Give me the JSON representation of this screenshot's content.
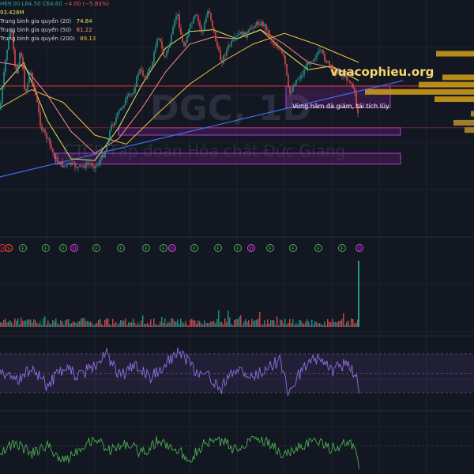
{
  "chart_data": {
    "type": "candlestick",
    "watermark": {
      "symbol": "DGC, 1D",
      "company": "CTCP Tập đoàn Hóa chất Đức Giang"
    },
    "brand": "vuacophieu.org",
    "ohlc_text": {
      "h": "H69.00",
      "l": "L64.50",
      "c": "C64.60",
      "chg": "−4.00 (−5.83%)"
    },
    "volume_text": "93.428M",
    "ma_legend": [
      {
        "name": "Trung bình gia quyền (20)",
        "value": "74.84",
        "color": "#e1e65a"
      },
      {
        "name": "Trung bình gia quyền (50)",
        "value": "81.22",
        "color": "#ff8a8a"
      },
      {
        "name": "Trung bình gia quyền (200)",
        "value": "89.13",
        "color": "#f0c040"
      }
    ],
    "annotation": "Vùng hãm đà giảm, tái tích lũy",
    "price_path": [
      [
        0,
        0.56
      ],
      [
        8,
        0.25
      ],
      [
        14,
        0.1
      ],
      [
        20,
        0.38
      ],
      [
        26,
        0.22
      ],
      [
        32,
        0.48
      ],
      [
        38,
        0.34
      ],
      [
        46,
        0.5
      ],
      [
        52,
        0.66
      ],
      [
        60,
        0.72
      ],
      [
        70,
        0.83
      ],
      [
        80,
        0.87
      ],
      [
        90,
        0.86
      ],
      [
        100,
        0.88
      ],
      [
        112,
        0.86
      ],
      [
        122,
        0.87
      ],
      [
        132,
        0.8
      ],
      [
        140,
        0.66
      ],
      [
        150,
        0.58
      ],
      [
        160,
        0.5
      ],
      [
        168,
        0.47
      ],
      [
        176,
        0.34
      ],
      [
        184,
        0.38
      ],
      [
        192,
        0.32
      ],
      [
        200,
        0.14
      ],
      [
        208,
        0.28
      ],
      [
        216,
        0.18
      ],
      [
        224,
        0.02
      ],
      [
        232,
        0.22
      ],
      [
        240,
        0.11
      ],
      [
        248,
        0.04
      ],
      [
        256,
        0.14
      ],
      [
        264,
        0.0
      ],
      [
        272,
        0.16
      ],
      [
        280,
        0.3
      ],
      [
        288,
        0.22
      ],
      [
        296,
        0.18
      ],
      [
        304,
        0.14
      ],
      [
        312,
        0.15
      ],
      [
        320,
        0.1
      ],
      [
        328,
        0.08
      ],
      [
        336,
        0.1
      ],
      [
        344,
        0.18
      ],
      [
        352,
        0.22
      ],
      [
        360,
        0.28
      ],
      [
        366,
        0.48
      ],
      [
        374,
        0.4
      ],
      [
        382,
        0.37
      ],
      [
        390,
        0.3
      ],
      [
        398,
        0.27
      ],
      [
        406,
        0.24
      ],
      [
        414,
        0.3
      ],
      [
        422,
        0.35
      ],
      [
        430,
        0.36
      ],
      [
        438,
        0.38
      ],
      [
        446,
        0.42
      ],
      [
        450,
        0.5
      ],
      [
        454,
        0.6
      ]
    ],
    "ma20_path": [
      [
        0,
        0.45
      ],
      [
        30,
        0.3
      ],
      [
        60,
        0.62
      ],
      [
        90,
        0.83
      ],
      [
        120,
        0.84
      ],
      [
        150,
        0.66
      ],
      [
        180,
        0.42
      ],
      [
        210,
        0.22
      ],
      [
        240,
        0.13
      ],
      [
        270,
        0.12
      ],
      [
        300,
        0.17
      ],
      [
        330,
        0.12
      ],
      [
        360,
        0.24
      ],
      [
        390,
        0.34
      ],
      [
        420,
        0.32
      ],
      [
        454,
        0.4
      ]
    ],
    "ma50_path": [
      [
        0,
        0.3
      ],
      [
        30,
        0.32
      ],
      [
        60,
        0.48
      ],
      [
        90,
        0.68
      ],
      [
        120,
        0.8
      ],
      [
        150,
        0.72
      ],
      [
        180,
        0.55
      ],
      [
        210,
        0.35
      ],
      [
        240,
        0.2
      ],
      [
        270,
        0.16
      ],
      [
        300,
        0.17
      ],
      [
        330,
        0.12
      ],
      [
        360,
        0.2
      ],
      [
        390,
        0.3
      ],
      [
        420,
        0.33
      ],
      [
        454,
        0.37
      ]
    ],
    "ma200_path": [
      [
        0,
        0.55
      ],
      [
        40,
        0.45
      ],
      [
        80,
        0.52
      ],
      [
        120,
        0.7
      ],
      [
        160,
        0.75
      ],
      [
        200,
        0.58
      ],
      [
        240,
        0.42
      ],
      [
        280,
        0.3
      ],
      [
        320,
        0.2
      ],
      [
        360,
        0.14
      ],
      [
        400,
        0.2
      ],
      [
        454,
        0.3
      ]
    ],
    "trendline": [
      [
        0,
        0.93
      ],
      [
        510,
        0.4
      ]
    ],
    "resistance_level": 0.43,
    "support_level": 0.66,
    "zones": [
      {
        "x0": 362,
        "x1": 494,
        "y0": 0.43,
        "y1": 0.55
      },
      {
        "x0": 150,
        "x1": 507,
        "y0": 0.66,
        "y1": 0.7
      },
      {
        "x0": 70,
        "x1": 507,
        "y0": 0.8,
        "y1": 0.86
      }
    ],
    "volume_profile": [
      {
        "y": 0.25,
        "len": 48,
        "color": "#d4a017"
      },
      {
        "y": 0.38,
        "len": 40,
        "color": "#d4a017"
      },
      {
        "y": 0.42,
        "len": 70,
        "color": "#d4a017"
      },
      {
        "y": 0.46,
        "len": 138,
        "color": "#d4a017"
      },
      {
        "y": 0.5,
        "len": 50,
        "color": "#d4a017"
      },
      {
        "y": 0.58,
        "len": 4,
        "color": "#b89030"
      },
      {
        "y": 0.63,
        "len": 26,
        "color": "#b89030"
      },
      {
        "y": 0.67,
        "len": 12,
        "color": "#b89030"
      }
    ],
    "event_markers": [
      {
        "x": 3,
        "label": "D",
        "color": "#e91e63"
      },
      {
        "x": 11,
        "label": "S",
        "color": "#ff5722"
      },
      {
        "x": 29,
        "label": "F",
        "color": "#4caf50"
      },
      {
        "x": 58,
        "label": "F",
        "color": "#4caf50"
      },
      {
        "x": 80,
        "label": "F",
        "color": "#4caf50"
      },
      {
        "x": 94,
        "label": "D",
        "color": "#e040fb"
      },
      {
        "x": 122,
        "label": "F",
        "color": "#4caf50"
      },
      {
        "x": 153,
        "label": "F",
        "color": "#4caf50"
      },
      {
        "x": 185,
        "label": "F",
        "color": "#4caf50"
      },
      {
        "x": 207,
        "label": "F",
        "color": "#4caf50"
      },
      {
        "x": 218,
        "label": "D",
        "color": "#e040fb"
      },
      {
        "x": 246,
        "label": "F",
        "color": "#4caf50"
      },
      {
        "x": 276,
        "label": "F",
        "color": "#4caf50"
      },
      {
        "x": 301,
        "label": "F",
        "color": "#4caf50"
      },
      {
        "x": 318,
        "label": "D",
        "color": "#e040fb"
      },
      {
        "x": 342,
        "label": "F",
        "color": "#4caf50"
      },
      {
        "x": 371,
        "label": "F",
        "color": "#4caf50"
      },
      {
        "x": 403,
        "label": "F",
        "color": "#4caf50"
      },
      {
        "x": 433,
        "label": "F",
        "color": "#4caf50"
      },
      {
        "x": 455,
        "label": "D",
        "color": "#e040fb"
      }
    ],
    "rsi_path": [
      [
        0,
        0.45
      ],
      [
        20,
        0.65
      ],
      [
        40,
        0.4
      ],
      [
        60,
        0.75
      ],
      [
        80,
        0.4
      ],
      [
        100,
        0.55
      ],
      [
        120,
        0.35
      ],
      [
        135,
        0.1
      ],
      [
        150,
        0.55
      ],
      [
        170,
        0.35
      ],
      [
        190,
        0.6
      ],
      [
        210,
        0.3
      ],
      [
        228,
        0.05
      ],
      [
        245,
        0.45
      ],
      [
        265,
        0.55
      ],
      [
        280,
        0.8
      ],
      [
        300,
        0.4
      ],
      [
        320,
        0.6
      ],
      [
        340,
        0.35
      ],
      [
        355,
        0.25
      ],
      [
        365,
        0.85
      ],
      [
        380,
        0.5
      ],
      [
        400,
        0.2
      ],
      [
        420,
        0.45
      ],
      [
        440,
        0.3
      ],
      [
        450,
        0.55
      ],
      [
        455,
        0.8
      ]
    ],
    "macd_path": [
      [
        0,
        0.55
      ],
      [
        20,
        0.4
      ],
      [
        40,
        0.6
      ],
      [
        60,
        0.45
      ],
      [
        80,
        0.75
      ],
      [
        100,
        0.5
      ],
      [
        120,
        0.3
      ],
      [
        140,
        0.55
      ],
      [
        160,
        0.4
      ],
      [
        180,
        0.6
      ],
      [
        200,
        0.35
      ],
      [
        220,
        0.5
      ],
      [
        240,
        0.7
      ],
      [
        260,
        0.4
      ],
      [
        280,
        0.35
      ],
      [
        300,
        0.55
      ],
      [
        320,
        0.25
      ],
      [
        340,
        0.4
      ],
      [
        360,
        0.65
      ],
      [
        380,
        0.45
      ],
      [
        400,
        0.35
      ],
      [
        420,
        0.5
      ],
      [
        440,
        0.4
      ],
      [
        450,
        0.5
      ],
      [
        455,
        1.0
      ]
    ]
  }
}
